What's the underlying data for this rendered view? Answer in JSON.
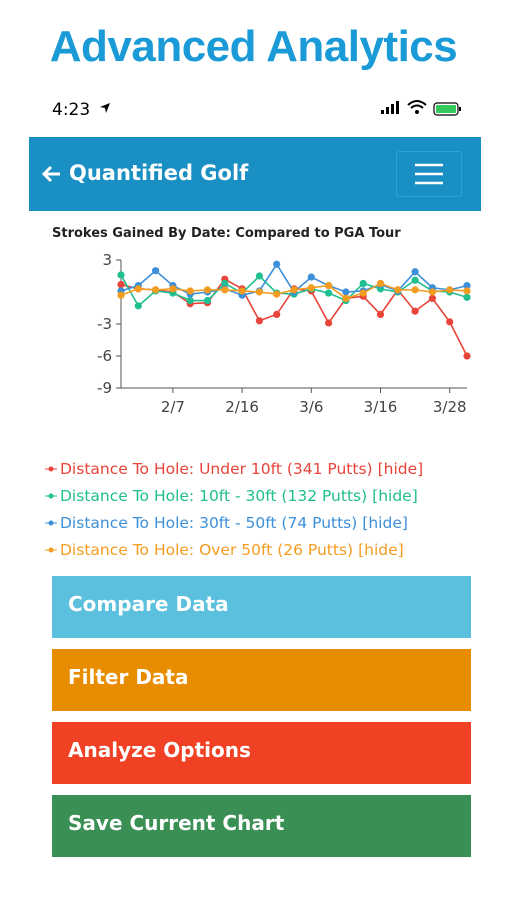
{
  "header": {
    "title": "Advanced Analytics"
  },
  "status_bar": {
    "time": "4:23"
  },
  "navbar": {
    "brand": "Quantified Golf"
  },
  "chart_data": {
    "type": "line",
    "title": "Strokes Gained By Date: Compared to PGA Tour",
    "categories": [
      null,
      null,
      null,
      "2/7",
      null,
      null,
      null,
      "2/16",
      null,
      null,
      null,
      "3/6",
      null,
      null,
      null,
      "3/16",
      null,
      null,
      null,
      "3/28",
      null
    ],
    "series": [
      {
        "name": "Distance To Hole: Under 10ft (341 Putts)",
        "color": "#e8443a",
        "values": [
          0.7,
          0.3,
          0.2,
          0,
          -1.1,
          -1,
          1.2,
          0.3,
          -2.7,
          -2.1,
          0.3,
          0.1,
          -2.9,
          -0.6,
          -0.4,
          -2.1,
          0.2,
          -1.8,
          -0.6,
          -2.8,
          -6
        ]
      },
      {
        "name": "Distance To Hole: 10ft - 30ft (132 Putts)",
        "color": "#1fbf8f",
        "values": [
          1.6,
          -1.3,
          0.1,
          -0.1,
          -0.8,
          -0.8,
          0.8,
          -0.1,
          1.5,
          -0.1,
          -0.2,
          0.3,
          -0.1,
          -0.8,
          0.8,
          0.3,
          0,
          1.1,
          0.1,
          0,
          -0.5
        ]
      },
      {
        "name": "Distance To Hole: 30ft - 50ft (74 Putts)",
        "color": "#3d8fd9",
        "values": [
          0.1,
          0.6,
          2,
          0.6,
          -0.2,
          0,
          0.3,
          -0.3,
          0.1,
          2.6,
          0,
          1.4,
          0.6,
          0,
          0.1,
          0.7,
          0.1,
          1.9,
          0.4,
          0.2,
          0.6
        ]
      },
      {
        "name": "Distance To Hole: Over 50ft (26 Putts)",
        "color": "#f39c1f",
        "values": [
          -0.3,
          0.3,
          0.2,
          0.3,
          0.1,
          0.2,
          0.2,
          0.1,
          0,
          -0.2,
          0.2,
          0.4,
          0.6,
          -0.6,
          -0.1,
          0.8,
          0.2,
          0.2,
          0,
          0.2,
          0.1
        ]
      }
    ],
    "ylim": [
      -9,
      3
    ],
    "yticks": [
      -9,
      -6,
      -3,
      3
    ],
    "legend_action": "[hide]"
  },
  "buttons": [
    {
      "label": "Compare Data",
      "color": "#5bc0de"
    },
    {
      "label": "Filter Data",
      "color": "#e88d00"
    },
    {
      "label": "Analyze Options",
      "color": "#f04124"
    },
    {
      "label": "Save Current Chart",
      "color": "#3a8f55"
    }
  ]
}
